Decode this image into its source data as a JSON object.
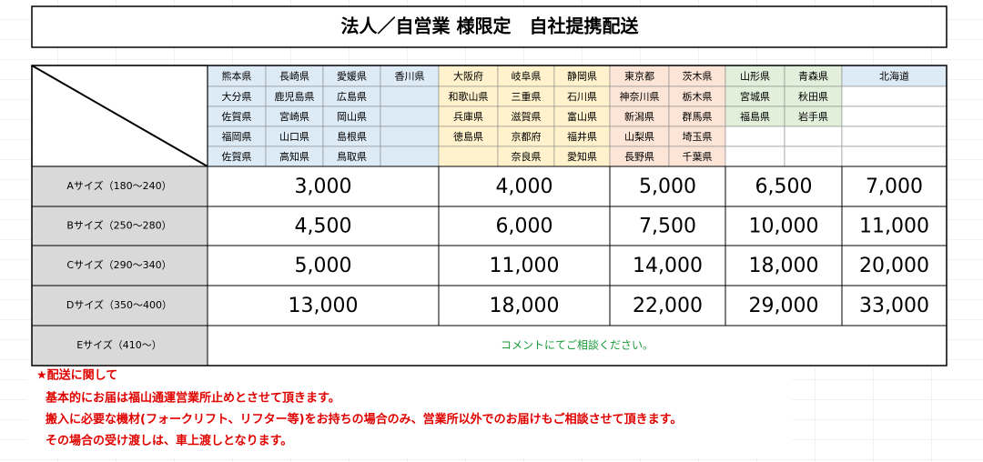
{
  "title": "法人／自営業 様限定　自社提携配送",
  "table": {
    "groups": [
      {
        "columns": [
          [
            "熊本県",
            "大分県",
            "佐賀県",
            "福岡県",
            "佐賀県"
          ],
          [
            "長崎県",
            "鹿児島県",
            "宮崎県",
            "山口県",
            "高知県"
          ],
          [
            "愛媛県",
            "広島県",
            "岡山県",
            "島根県",
            "鳥取県"
          ],
          [
            "香川県"
          ]
        ]
      },
      {
        "columns": [
          [
            "大阪府",
            "和歌山県",
            "兵庫県",
            "徳島県"
          ],
          [
            "岐阜県",
            "三重県",
            "滋賀県",
            "京都府",
            "奈良県"
          ],
          [
            "静岡県",
            "石川県",
            "富山県",
            "福井県",
            "愛知県"
          ]
        ]
      },
      {
        "columns": [
          [
            "東京都",
            "神奈川県",
            "新潟県",
            "山梨県",
            "長野県"
          ],
          [
            "茨木県",
            "栃木県",
            "群馬県",
            "埼玉県",
            "千葉県"
          ]
        ]
      },
      {
        "columns": [
          [
            "山形県",
            "宮城県",
            "福島県"
          ],
          [
            "青森県",
            "秋田県",
            "岩手県"
          ]
        ]
      },
      {
        "columns": [
          [
            "北海道"
          ]
        ]
      }
    ],
    "rows": [
      {
        "label": "Aサイズ（180～240）",
        "prices": [
          "3,000",
          "4,000",
          "5,000",
          "6,500",
          "7,000"
        ]
      },
      {
        "label": "Bサイズ（250～280）",
        "prices": [
          "4,500",
          "6,000",
          "7,500",
          "10,000",
          "11,000"
        ]
      },
      {
        "label": "Cサイズ（290～340）",
        "prices": [
          "5,000",
          "11,000",
          "14,000",
          "18,000",
          "20,000"
        ]
      },
      {
        "label": "Dサイズ（350～400）",
        "prices": [
          "13,000",
          "18,000",
          "22,000",
          "29,000",
          "33,000"
        ]
      }
    ],
    "last_row": {
      "label": "Eサイズ（410～）",
      "note": "コメントにてご相談ください。"
    }
  },
  "notes": {
    "heading": "★配送に関して",
    "lines": [
      "基本的にお届は福山通運営業所止めとさせて頂きます。",
      "搬入に必要な機材(フォークリフト、リフター等)をお持ちの場合のみ、営業所以外でのお届けもご相談させて頂きます。",
      "その場合の受け渡しは、車上渡しとなります。"
    ]
  }
}
